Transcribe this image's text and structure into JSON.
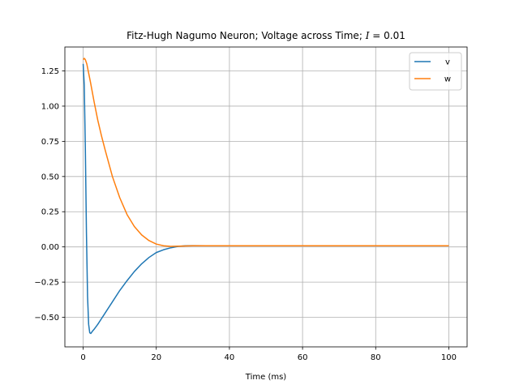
{
  "chart_data": {
    "type": "line",
    "title_prefix": "Fitz-Hugh Nagumo Neuron; Voltage across Time; ",
    "title_math_var": "I",
    "title_math_rest": " = 0.01",
    "xlabel": "Time (ms)",
    "ylabel": "",
    "xlim": [
      -5,
      105
    ],
    "ylim": [
      -0.71,
      1.42
    ],
    "xticks": [
      0,
      20,
      40,
      60,
      80,
      100
    ],
    "xtick_labels": [
      "0",
      "20",
      "40",
      "60",
      "80",
      "100"
    ],
    "yticks": [
      -0.5,
      -0.25,
      0.0,
      0.25,
      0.5,
      0.75,
      1.0,
      1.25
    ],
    "ytick_labels": [
      "−0.50",
      "−0.25",
      "0.00",
      "0.25",
      "0.50",
      "0.75",
      "1.00",
      "1.25"
    ],
    "grid": true,
    "legend_position": "top-right",
    "series": [
      {
        "name": "v",
        "color": "#1f77b4",
        "x": [
          0,
          0.3,
          0.6,
          0.9,
          1.2,
          1.5,
          1.8,
          2.1,
          2.5,
          3,
          4,
          5,
          6,
          8,
          10,
          12,
          14,
          16,
          18,
          20,
          22,
          24,
          26,
          28,
          30,
          35,
          40,
          50,
          60,
          70,
          80,
          90,
          100
        ],
        "y": [
          1.3,
          1.15,
          0.7,
          0.1,
          -0.35,
          -0.55,
          -0.61,
          -0.615,
          -0.6,
          -0.585,
          -0.55,
          -0.51,
          -0.47,
          -0.39,
          -0.31,
          -0.24,
          -0.175,
          -0.12,
          -0.075,
          -0.04,
          -0.02,
          -0.006,
          0.004,
          0.008,
          0.009,
          0.008,
          0.008,
          0.008,
          0.008,
          0.008,
          0.008,
          0.008,
          0.008
        ]
      },
      {
        "name": "w",
        "color": "#ff7f0e",
        "x": [
          0,
          0.3,
          0.6,
          1,
          2,
          3,
          4,
          5,
          6,
          8,
          10,
          12,
          14,
          16,
          18,
          20,
          22,
          24,
          26,
          28,
          30,
          35,
          40,
          50,
          60,
          70,
          80,
          90,
          100
        ],
        "y": [
          1.33,
          1.34,
          1.33,
          1.3,
          1.17,
          1.03,
          0.9,
          0.79,
          0.69,
          0.5,
          0.35,
          0.23,
          0.145,
          0.085,
          0.045,
          0.02,
          0.008,
          0.004,
          0.005,
          0.007,
          0.008,
          0.008,
          0.008,
          0.008,
          0.008,
          0.008,
          0.008,
          0.008,
          0.008
        ]
      }
    ]
  }
}
